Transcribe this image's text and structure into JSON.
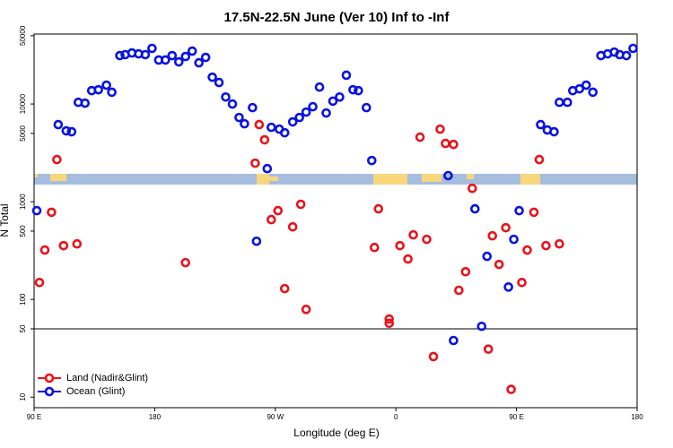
{
  "chart_data": {
    "type": "scatter",
    "title": "17.5N-22.5N June (Ver 10)   Inf to -Inf",
    "xlabel": "Longitude (deg E)",
    "ylabel": "N Total",
    "xlim": [
      90,
      540
    ],
    "ylim": [
      7.8,
      52000
    ],
    "log_y": true,
    "xticks": [
      {
        "value": 90,
        "label": "90 E"
      },
      {
        "value": 180,
        "label": "180"
      },
      {
        "value": 270,
        "label": "90 W"
      },
      {
        "value": 360,
        "label": "0"
      },
      {
        "value": 450,
        "label": "90 E"
      },
      {
        "value": 540,
        "label": "180"
      }
    ],
    "yticks": [
      10,
      50,
      100,
      500,
      1000,
      5000,
      10000,
      50000
    ],
    "reference_line": 50,
    "legend": "bottom-left",
    "series": [
      {
        "name": "Land (Nadir&Glint)",
        "color": "#e8141c",
        "x": [
          94,
          98,
          103,
          107,
          112,
          122,
          203,
          255,
          258,
          262,
          267,
          272,
          277,
          283,
          289,
          293,
          344,
          347,
          355,
          355,
          363,
          369,
          373,
          378,
          383,
          388,
          393,
          397,
          403,
          407,
          412,
          417,
          429,
          432,
          437,
          442,
          446,
          454,
          458,
          463,
          467,
          472,
          482
        ],
        "values": [
          149,
          320,
          780,
          2700,
          355,
          370,
          238,
          2480,
          6150,
          4300,
          656,
          810,
          129,
          553,
          940,
          79,
          340,
          845,
          63,
          57,
          355,
          259,
          458,
          4580,
          412,
          26,
          5530,
          3950,
          3860,
          124,
          192,
          1370,
          31,
          448,
          228,
          542,
          12,
          149,
          320,
          780,
          2700,
          355,
          370
        ]
      },
      {
        "name": "Ocean (Glint)",
        "color": "#0a14e0",
        "x": [
          92,
          108,
          114,
          118,
          123,
          128,
          133,
          138,
          144,
          148,
          154,
          158,
          163,
          168,
          173,
          178,
          183,
          188,
          193,
          198,
          203,
          208,
          213,
          218,
          223,
          228,
          233,
          238,
          243,
          247,
          253,
          256,
          264,
          267,
          273,
          277,
          283,
          288,
          293,
          298,
          303,
          308,
          313,
          318,
          323,
          328,
          332,
          338,
          342,
          399,
          403,
          419,
          424,
          428,
          444,
          448,
          452,
          468,
          473,
          478,
          482,
          488,
          492,
          497,
          502,
          507,
          513,
          518,
          523,
          527,
          532,
          537
        ],
        "values": [
          810,
          6150,
          5310,
          5200,
          10400,
          10200,
          13700,
          14000,
          15600,
          13200,
          31300,
          32000,
          33300,
          32600,
          32000,
          37100,
          28200,
          28200,
          31300,
          27000,
          30600,
          34800,
          26400,
          30000,
          18800,
          16600,
          11800,
          10000,
          7280,
          6280,
          9180,
          394,
          2180,
          5770,
          5530,
          5080,
          6560,
          7280,
          8260,
          9380,
          14900,
          8090,
          10700,
          11800,
          19700,
          14000,
          13700,
          9180,
          2640,
          1850,
          38,
          845,
          53,
          276,
          134,
          412,
          810,
          6150,
          5420,
          5200,
          10400,
          10400,
          13700,
          14300,
          15600,
          13200,
          31300,
          32600,
          34000,
          32000,
          31300,
          37100
        ]
      }
    ]
  }
}
